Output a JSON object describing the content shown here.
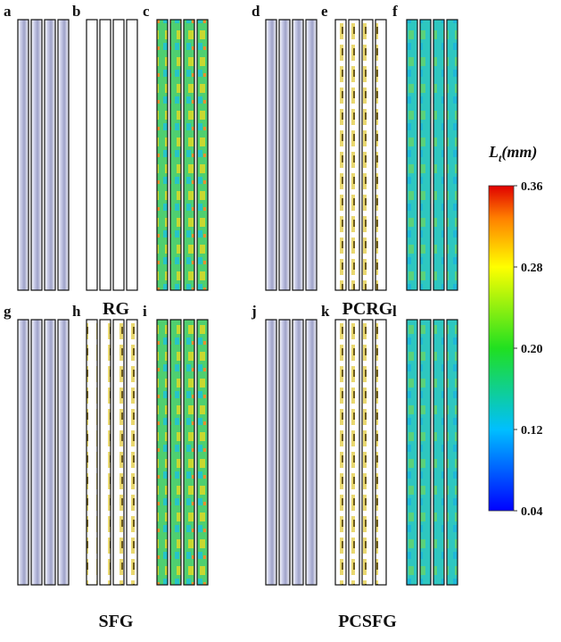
{
  "panels": [
    "a",
    "b",
    "c",
    "d",
    "e",
    "f",
    "g",
    "h",
    "i",
    "j",
    "k",
    "l"
  ],
  "groups": [
    "RG",
    "PCRG",
    "SFG",
    "PCSFG"
  ],
  "colorbar": {
    "symbol": "L",
    "subscript": "t",
    "unit": "(mm)",
    "lim": [
      0.04,
      0.36
    ],
    "ticks": [
      0.36,
      0.28,
      0.2,
      0.12,
      0.04
    ]
  }
}
